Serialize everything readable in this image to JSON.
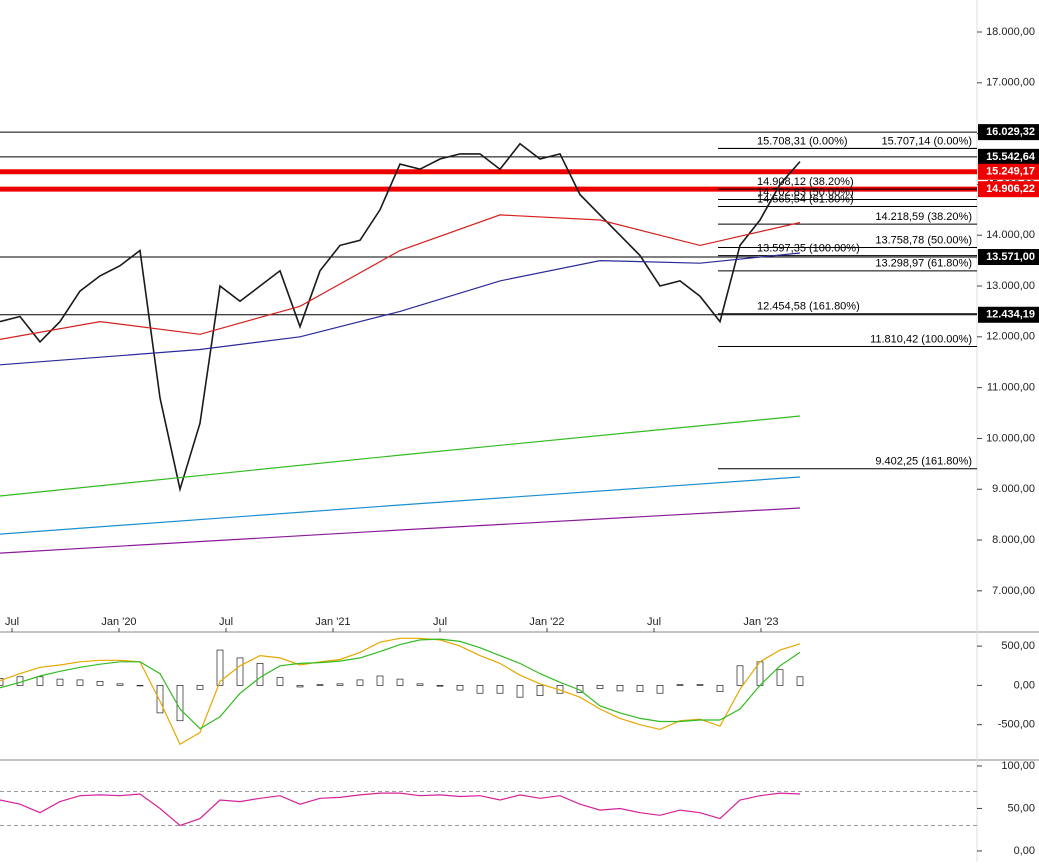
{
  "chart_data": [
    {
      "type": "line",
      "ylim": [
        6190,
        18630
      ],
      "yticks": [
        {
          "value": 18000,
          "label": "18.000,00"
        },
        {
          "value": 17000,
          "label": "17.000,00"
        },
        {
          "value": 16000,
          "label": "16.000,00"
        },
        {
          "value": 15000,
          "label": "15.000,00"
        },
        {
          "value": 14000,
          "label": "14.000,00"
        },
        {
          "value": 13000,
          "label": "13.000,00"
        },
        {
          "value": 12000,
          "label": "12.000,00"
        },
        {
          "value": 11000,
          "label": "11.000,00"
        },
        {
          "value": 10000,
          "label": "10.000,00"
        },
        {
          "value": 9000,
          "label": "9.000,00"
        },
        {
          "value": 8000,
          "label": "8.000,00"
        },
        {
          "value": 7000,
          "label": "7.000,00"
        }
      ],
      "x_labels": [
        "Jul",
        "Jan '20",
        "Jul",
        "Jan '21",
        "Jul",
        "Jan '22",
        "Jul",
        "Jan '23"
      ],
      "series": [
        {
          "color": "#1a1a1a",
          "values": [
            12300,
            12400,
            11900,
            12300,
            12900,
            13200,
            13400,
            13700,
            10800,
            9000,
            10300,
            13000,
            12700,
            13000,
            13300,
            12200,
            13300,
            13800,
            13900,
            14500,
            15400,
            15300,
            15500,
            15600,
            15600,
            15300,
            15800,
            15500,
            15600,
            14800,
            14400,
            14000,
            13600,
            13000,
            13100,
            12800,
            12300,
            13800,
            14300,
            15000,
            15450
          ]
        },
        {
          "color": "#d62020",
          "values": [
            11950,
            12300,
            12050,
            12600,
            13700,
            14400,
            14300,
            13800,
            14250
          ]
        },
        {
          "color": "#2a2a9a",
          "values": [
            11450,
            11600,
            11750,
            12000,
            12500,
            13100,
            13500,
            13450,
            13650
          ]
        },
        {
          "color": "#33bb22",
          "values": [
            8866,
            9673,
            10441
          ]
        },
        {
          "color": "#1c8fcf",
          "values": [
            8118,
            8689,
            9240
          ]
        },
        {
          "color": "#8a1a9a",
          "values": [
            7744,
            8197,
            8630
          ]
        }
      ],
      "levels": [
        {
          "value": 16029.32,
          "label": "16.029,32",
          "color": "#000000"
        },
        {
          "value": 15542.64,
          "label": "15.542,64",
          "color": "#000000"
        },
        {
          "value": 15249.17,
          "label": "15.249,17",
          "color": "#ee0000"
        },
        {
          "value": 14906.22,
          "label": "14.906,22",
          "color": "#ee0000"
        },
        {
          "value": 13571.0,
          "label": "13.571,00",
          "color": "#000000"
        },
        {
          "value": 12434.19,
          "label": "12.434,19",
          "color": "#000000"
        }
      ],
      "fib_left": [
        {
          "value": 15708.31,
          "label": "15.708,31 (0.00%)"
        },
        {
          "value": 14908.12,
          "label": "14.908,12 (38.20%)"
        },
        {
          "value": 14702.83,
          "label": "14.702,83 (50.00%)"
        },
        {
          "value": 14565.54,
          "label": "14.565,54 (61.80%)"
        },
        {
          "value": 13597.35,
          "label": "13.597,35 (100.00%)"
        },
        {
          "value": 12454.58,
          "label": "12.454,58 (161.80%)"
        }
      ],
      "fib_right": [
        {
          "value": 15707.14,
          "label": "15.707,14 (0.00%)"
        },
        {
          "value": 14218.59,
          "label": "14.218,59 (38.20%)"
        },
        {
          "value": 13758.78,
          "label": "13.758,78 (50.00%)"
        },
        {
          "value": 13298.97,
          "label": "13.298,97 (61.80%)"
        },
        {
          "value": 11810.42,
          "label": "11.810,42 (100.00%)"
        },
        {
          "value": 9402.25,
          "label": "9.402,25 (161.80%)"
        }
      ]
    },
    {
      "type": "macd",
      "ylim": [
        -950,
        680
      ],
      "yticks": [
        {
          "value": 500,
          "label": "500,00"
        },
        {
          "value": 0,
          "label": "0,00"
        },
        {
          "value": -500,
          "label": "-500,00"
        }
      ],
      "series": [
        {
          "style": "bar",
          "color": "#ffffff",
          "values": [
            90,
            110,
            110,
            80,
            70,
            50,
            20,
            0,
            -350,
            -450,
            -50,
            450,
            350,
            280,
            100,
            -20,
            10,
            20,
            70,
            120,
            80,
            20,
            -10,
            -60,
            -100,
            -100,
            -150,
            -130,
            -100,
            -90,
            -40,
            -70,
            -80,
            -100,
            10,
            10,
            -80,
            250,
            300,
            200,
            110
          ]
        },
        {
          "color": "#e6a800",
          "values": [
            60,
            150,
            230,
            260,
            300,
            320,
            320,
            300,
            -200,
            -750,
            -600,
            50,
            250,
            380,
            350,
            260,
            300,
            330,
            420,
            550,
            600,
            600,
            580,
            500,
            380,
            280,
            130,
            20,
            -60,
            -150,
            -300,
            -420,
            -500,
            -560,
            -450,
            -430,
            -520,
            -50,
            300,
            450,
            530
          ]
        },
        {
          "color": "#33bb22",
          "values": [
            -30,
            40,
            120,
            180,
            230,
            270,
            300,
            300,
            150,
            -300,
            -550,
            -400,
            -100,
            100,
            250,
            280,
            290,
            310,
            350,
            430,
            520,
            580,
            590,
            560,
            480,
            380,
            280,
            150,
            40,
            -60,
            -260,
            -350,
            -420,
            -460,
            -460,
            -440,
            -440,
            -300,
            0,
            250,
            420
          ]
        }
      ]
    },
    {
      "type": "rsi",
      "ylim": [
        -13,
        107
      ],
      "yticks": [
        {
          "value": 100,
          "label": "100,00"
        },
        {
          "value": 50,
          "label": "50,00"
        },
        {
          "value": 0,
          "label": "0,00"
        }
      ],
      "guides": [
        70,
        30
      ],
      "series": [
        {
          "color": "#d6229a",
          "values": [
            60,
            55,
            45,
            58,
            65,
            66,
            65,
            67,
            50,
            30,
            38,
            60,
            58,
            62,
            65,
            55,
            62,
            63,
            66,
            68,
            68,
            65,
            66,
            64,
            65,
            60,
            66,
            62,
            65,
            55,
            48,
            50,
            45,
            42,
            48,
            45,
            38,
            60,
            65,
            68,
            67
          ]
        }
      ]
    }
  ]
}
